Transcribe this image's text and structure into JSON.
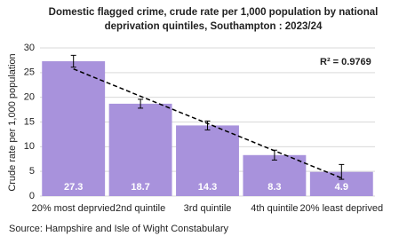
{
  "chart_data": {
    "type": "bar",
    "title": [
      "Domestic flagged crime, crude rate per 1,000 population by national",
      "deprivation quintiles, Southampton : 2023/24"
    ],
    "y_label": "Crude rate per 1,000 population",
    "categories": [
      "20% most deprvied",
      "2nd quintile",
      "3rd quintile",
      "4th quintile",
      "20% least deprived"
    ],
    "values": [
      27.3,
      18.7,
      14.3,
      8.3,
      4.9
    ],
    "errors": [
      1.2,
      0.9,
      0.9,
      1.0,
      1.5
    ],
    "color": "#a892dc",
    "ylim": [
      0,
      30
    ],
    "yticks": [
      0,
      5,
      10,
      15,
      20,
      25,
      30
    ],
    "grid": true,
    "trendline": "linear",
    "annotation": "R² = 0.9769",
    "source": "Source: Hampshire and Isle of Wight Constabulary"
  }
}
